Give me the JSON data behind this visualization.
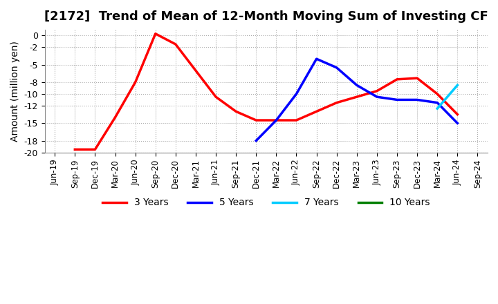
{
  "title": "[2172]  Trend of Mean of 12-Month Moving Sum of Investing CF",
  "ylabel": "Amount (million yen)",
  "ylim": [
    -20,
    1
  ],
  "yticks": [
    0,
    -2,
    -5,
    -8,
    -10,
    -12,
    -15,
    -18,
    -20
  ],
  "background_color": "#ffffff",
  "grid_color": "#aaaaaa",
  "series": {
    "3years": {
      "color": "#ff0000",
      "label": "3 Years",
      "x": [
        "Jun-19",
        "Sep-19",
        "Dec-19",
        "Mar-20",
        "Jun-20",
        "Sep-20",
        "Dec-20",
        "Mar-21",
        "Jun-21",
        "Sep-21",
        "Dec-21",
        "Mar-22",
        "Jun-22",
        "Sep-22",
        "Dec-22",
        "Mar-23",
        "Jun-23",
        "Sep-23",
        "Dec-23",
        "Mar-24",
        "Jun-24"
      ],
      "y": [
        null,
        -19.5,
        -19.5,
        -14.0,
        -8.0,
        0.3,
        -1.5,
        -6.0,
        -10.5,
        -13.0,
        -14.5,
        -14.5,
        -14.5,
        -13.0,
        -11.5,
        -10.5,
        -9.5,
        -7.5,
        -7.3,
        -10.0,
        -13.5
      ]
    },
    "5years": {
      "color": "#0000ff",
      "label": "5 Years",
      "x": [
        "Dec-21",
        "Mar-22",
        "Jun-22",
        "Sep-22",
        "Dec-22",
        "Mar-23",
        "Jun-23",
        "Sep-23",
        "Dec-23",
        "Mar-24",
        "Jun-24"
      ],
      "y": [
        -18.0,
        -14.5,
        -10.0,
        -4.0,
        -5.5,
        -8.5,
        -10.5,
        -11.0,
        -11.0,
        -11.5,
        -15.0
      ]
    },
    "7years": {
      "color": "#00ccff",
      "label": "7 Years",
      "x": [
        "Mar-24",
        "Jun-24"
      ],
      "y": [
        -12.5,
        -8.5
      ]
    },
    "10years": {
      "color": "#008000",
      "label": "10 Years",
      "x": [],
      "y": []
    }
  },
  "xtick_labels": [
    "Jun-19",
    "Sep-19",
    "Dec-19",
    "Mar-20",
    "Jun-20",
    "Sep-20",
    "Dec-20",
    "Mar-21",
    "Jun-21",
    "Sep-21",
    "Dec-21",
    "Mar-22",
    "Jun-22",
    "Sep-22",
    "Dec-22",
    "Mar-23",
    "Jun-23",
    "Sep-23",
    "Dec-23",
    "Mar-24",
    "Jun-24",
    "Sep-24"
  ]
}
